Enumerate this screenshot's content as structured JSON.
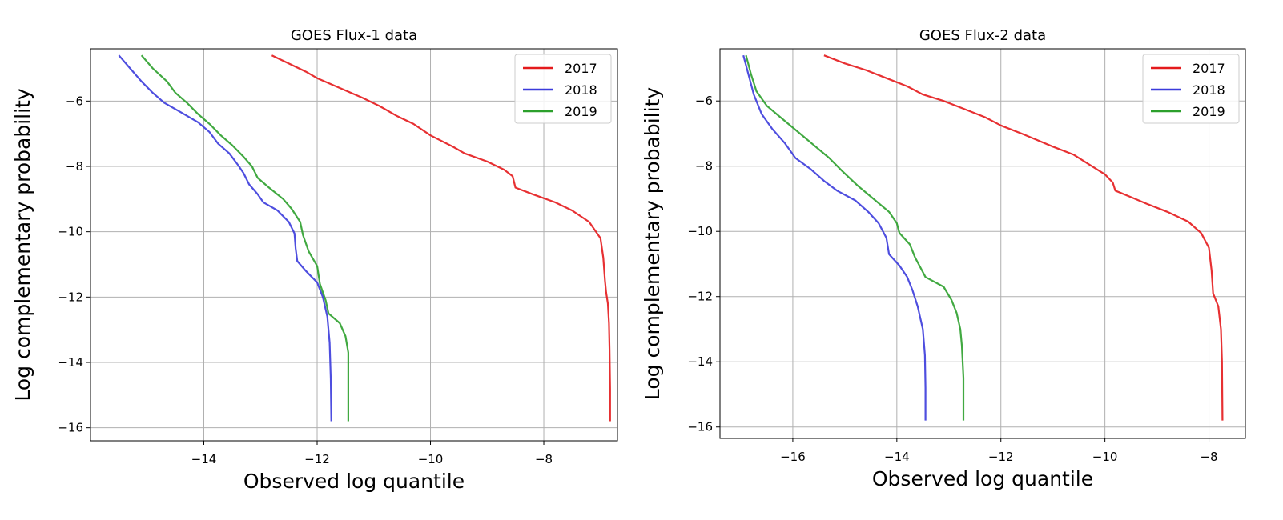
{
  "chart_data": [
    {
      "type": "line",
      "title": "GOES Flux-1 data",
      "xlabel": "Observed log quantile",
      "ylabel": "Log complementary probability",
      "xlim": [
        -16.0,
        -6.7
      ],
      "ylim": [
        -16.4,
        -4.4
      ],
      "xticks": [
        -14,
        -12,
        -10,
        -8
      ],
      "yticks": [
        -6,
        -8,
        -10,
        -12,
        -14,
        -16
      ],
      "xtick_labels": [
        "−14",
        "−12",
        "−10",
        "−8"
      ],
      "ytick_labels": [
        "−6",
        "−8",
        "−10",
        "−12",
        "−14",
        "−16"
      ],
      "grid": true,
      "legend": "top-right",
      "series": [
        {
          "name": "2017",
          "color": "#e41a1c",
          "points": [
            [
              -12.8,
              -4.6
            ],
            [
              -12.5,
              -4.85
            ],
            [
              -12.2,
              -5.1
            ],
            [
              -12.0,
              -5.3
            ],
            [
              -11.6,
              -5.6
            ],
            [
              -11.2,
              -5.9
            ],
            [
              -10.9,
              -6.15
            ],
            [
              -10.6,
              -6.45
            ],
            [
              -10.3,
              -6.7
            ],
            [
              -10.0,
              -7.05
            ],
            [
              -9.6,
              -7.4
            ],
            [
              -9.4,
              -7.6
            ],
            [
              -9.0,
              -7.85
            ],
            [
              -8.7,
              -8.1
            ],
            [
              -8.55,
              -8.3
            ],
            [
              -8.5,
              -8.65
            ],
            [
              -8.2,
              -8.85
            ],
            [
              -7.8,
              -9.1
            ],
            [
              -7.5,
              -9.35
            ],
            [
              -7.2,
              -9.7
            ],
            [
              -7.0,
              -10.2
            ],
            [
              -6.95,
              -10.8
            ],
            [
              -6.92,
              -11.5
            ],
            [
              -6.9,
              -11.85
            ],
            [
              -6.87,
              -12.2
            ],
            [
              -6.85,
              -12.8
            ],
            [
              -6.84,
              -13.6
            ],
            [
              -6.83,
              -14.8
            ],
            [
              -6.83,
              -15.8
            ]
          ]
        },
        {
          "name": "2018",
          "color": "#3b3bdb",
          "points": [
            [
              -15.5,
              -4.6
            ],
            [
              -15.3,
              -5.0
            ],
            [
              -15.1,
              -5.4
            ],
            [
              -14.9,
              -5.75
            ],
            [
              -14.7,
              -6.05
            ],
            [
              -14.4,
              -6.35
            ],
            [
              -14.1,
              -6.65
            ],
            [
              -13.9,
              -6.95
            ],
            [
              -13.75,
              -7.3
            ],
            [
              -13.55,
              -7.6
            ],
            [
              -13.4,
              -7.95
            ],
            [
              -13.3,
              -8.2
            ],
            [
              -13.2,
              -8.55
            ],
            [
              -13.05,
              -8.85
            ],
            [
              -12.95,
              -9.1
            ],
            [
              -12.7,
              -9.35
            ],
            [
              -12.5,
              -9.7
            ],
            [
              -12.4,
              -10.05
            ],
            [
              -12.38,
              -10.5
            ],
            [
              -12.35,
              -10.9
            ],
            [
              -12.2,
              -11.2
            ],
            [
              -12.0,
              -11.55
            ],
            [
              -11.9,
              -12.0
            ],
            [
              -11.82,
              -12.6
            ],
            [
              -11.78,
              -13.4
            ],
            [
              -11.76,
              -14.5
            ],
            [
              -11.75,
              -15.8
            ]
          ]
        },
        {
          "name": "2019",
          "color": "#2ca02c",
          "points": [
            [
              -15.1,
              -4.6
            ],
            [
              -14.9,
              -5.0
            ],
            [
              -14.65,
              -5.4
            ],
            [
              -14.5,
              -5.75
            ],
            [
              -14.3,
              -6.05
            ],
            [
              -14.1,
              -6.4
            ],
            [
              -13.9,
              -6.7
            ],
            [
              -13.7,
              -7.05
            ],
            [
              -13.5,
              -7.35
            ],
            [
              -13.3,
              -7.7
            ],
            [
              -13.15,
              -8.0
            ],
            [
              -13.05,
              -8.35
            ],
            [
              -12.85,
              -8.65
            ],
            [
              -12.6,
              -9.0
            ],
            [
              -12.45,
              -9.3
            ],
            [
              -12.3,
              -9.7
            ],
            [
              -12.25,
              -10.1
            ],
            [
              -12.15,
              -10.6
            ],
            [
              -12.0,
              -11.05
            ],
            [
              -11.95,
              -11.6
            ],
            [
              -11.85,
              -12.1
            ],
            [
              -11.8,
              -12.5
            ],
            [
              -11.6,
              -12.8
            ],
            [
              -11.5,
              -13.2
            ],
            [
              -11.45,
              -13.7
            ],
            [
              -11.45,
              -14.5
            ],
            [
              -11.45,
              -15.8
            ]
          ]
        }
      ]
    },
    {
      "type": "line",
      "title": "GOES Flux-2 data",
      "xlabel": "Observed log quantile",
      "ylabel": "Log complementary probability",
      "xlim": [
        -17.4,
        -7.3
      ],
      "ylim": [
        -16.35,
        -4.4
      ],
      "xticks": [
        -16,
        -14,
        -12,
        -10,
        -8
      ],
      "yticks": [
        -6,
        -8,
        -10,
        -12,
        -14,
        -16
      ],
      "xtick_labels": [
        "−16",
        "−14",
        "−12",
        "−10",
        "−8"
      ],
      "ytick_labels": [
        "−6",
        "−8",
        "−10",
        "−12",
        "−14",
        "−16"
      ],
      "grid": true,
      "legend": "top-right",
      "series": [
        {
          "name": "2017",
          "color": "#e41a1c",
          "points": [
            [
              -15.4,
              -4.6
            ],
            [
              -15.0,
              -4.85
            ],
            [
              -14.6,
              -5.05
            ],
            [
              -14.2,
              -5.3
            ],
            [
              -13.8,
              -5.55
            ],
            [
              -13.5,
              -5.8
            ],
            [
              -13.1,
              -6.0
            ],
            [
              -12.7,
              -6.25
            ],
            [
              -12.3,
              -6.5
            ],
            [
              -12.0,
              -6.75
            ],
            [
              -11.6,
              -7.0
            ],
            [
              -11.3,
              -7.2
            ],
            [
              -11.0,
              -7.4
            ],
            [
              -10.6,
              -7.65
            ],
            [
              -10.3,
              -7.95
            ],
            [
              -10.0,
              -8.25
            ],
            [
              -9.85,
              -8.5
            ],
            [
              -9.8,
              -8.75
            ],
            [
              -9.5,
              -8.95
            ],
            [
              -9.2,
              -9.15
            ],
            [
              -8.8,
              -9.4
            ],
            [
              -8.4,
              -9.7
            ],
            [
              -8.15,
              -10.05
            ],
            [
              -8.0,
              -10.5
            ],
            [
              -7.95,
              -11.2
            ],
            [
              -7.92,
              -11.9
            ],
            [
              -7.82,
              -12.3
            ],
            [
              -7.77,
              -13.0
            ],
            [
              -7.75,
              -14.0
            ],
            [
              -7.74,
              -15.8
            ]
          ]
        },
        {
          "name": "2018",
          "color": "#3b3bdb",
          "points": [
            [
              -16.95,
              -4.6
            ],
            [
              -16.85,
              -5.2
            ],
            [
              -16.75,
              -5.8
            ],
            [
              -16.6,
              -6.4
            ],
            [
              -16.4,
              -6.85
            ],
            [
              -16.15,
              -7.3
            ],
            [
              -15.95,
              -7.75
            ],
            [
              -15.65,
              -8.1
            ],
            [
              -15.4,
              -8.45
            ],
            [
              -15.15,
              -8.75
            ],
            [
              -14.8,
              -9.05
            ],
            [
              -14.55,
              -9.4
            ],
            [
              -14.35,
              -9.75
            ],
            [
              -14.2,
              -10.2
            ],
            [
              -14.15,
              -10.7
            ],
            [
              -13.95,
              -11.05
            ],
            [
              -13.8,
              -11.4
            ],
            [
              -13.7,
              -11.8
            ],
            [
              -13.6,
              -12.3
            ],
            [
              -13.5,
              -13.0
            ],
            [
              -13.46,
              -13.8
            ],
            [
              -13.45,
              -14.8
            ],
            [
              -13.45,
              -15.8
            ]
          ]
        },
        {
          "name": "2019",
          "color": "#2ca02c",
          "points": [
            [
              -16.9,
              -4.6
            ],
            [
              -16.8,
              -5.2
            ],
            [
              -16.7,
              -5.7
            ],
            [
              -16.5,
              -6.15
            ],
            [
              -16.2,
              -6.55
            ],
            [
              -15.9,
              -6.95
            ],
            [
              -15.6,
              -7.35
            ],
            [
              -15.3,
              -7.75
            ],
            [
              -15.05,
              -8.15
            ],
            [
              -14.75,
              -8.6
            ],
            [
              -14.45,
              -9.0
            ],
            [
              -14.15,
              -9.4
            ],
            [
              -14.0,
              -9.75
            ],
            [
              -13.95,
              -10.05
            ],
            [
              -13.75,
              -10.4
            ],
            [
              -13.65,
              -10.8
            ],
            [
              -13.55,
              -11.1
            ],
            [
              -13.45,
              -11.4
            ],
            [
              -13.1,
              -11.7
            ],
            [
              -12.95,
              -12.1
            ],
            [
              -12.85,
              -12.5
            ],
            [
              -12.78,
              -13.0
            ],
            [
              -12.75,
              -13.5
            ],
            [
              -12.72,
              -14.5
            ],
            [
              -12.72,
              -15.8
            ]
          ]
        }
      ]
    }
  ]
}
